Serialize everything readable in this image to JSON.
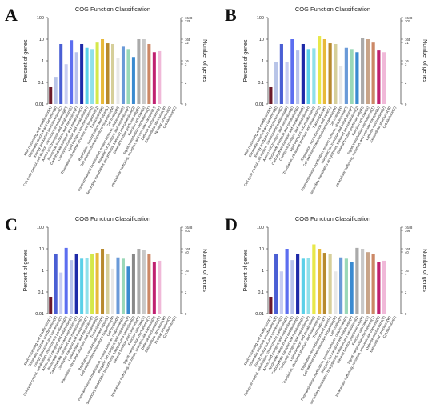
{
  "chart_data": [
    {
      "panel": "A",
      "type": "bar",
      "title": "COG Function Classification",
      "ylabel": "Percent of genes",
      "y2label": "Number of genes",
      "yscale": "log",
      "ylim": [
        0.01,
        100
      ],
      "yticks": [
        "100",
        "10",
        "1",
        "0.1",
        "0.01"
      ],
      "y2ticks": [
        "1648",
        "329",
        "165",
        "32",
        "16",
        "3",
        "2",
        "0"
      ],
      "categories": [
        "RNA processing and modification(A)",
        "Chromatin structure and dynamics(B)",
        "Energy production and conversion(C)",
        "Cell cycle control, cell division, chromosome partitioning(D)",
        "Amino acid transport and metabolism(E)",
        "Nucleotide transport and metabolism(F)",
        "Carbohydrate transport and metabolism(G)",
        "Coenzyme transport and metabolism(H)",
        "Lipid transport and metabolism(I)",
        "Translation, ribosomal structure and biogenesis(J)",
        "Transcription(K)",
        "Replication, recombination and repair(L)",
        "Cell wall/membrane/envelope biogenesis(M)",
        "Cell motility(N)",
        "Posttranslational modification, protein turnover, chaperones(O)",
        "Inorganic ion transport and metabolism(P)",
        "Secondary metabolites biosynthesis, transport and catabolism(Q)",
        "General function prediction only(R)",
        "Function unknown(S)",
        "Signal transduction mechanisms(T)",
        "Intracellular trafficking, secretion, and vesicular transport(U)",
        "Defense mechanisms(V)",
        "Extracellular structures(W)",
        "Nuclear structure(Y)",
        "Cytoskeleton(Z)"
      ],
      "values": [
        0.06,
        0.18,
        6.0,
        0.7,
        9.0,
        2.5,
        6.0,
        4.0,
        3.5,
        7.0,
        10.0,
        6.5,
        6.0,
        1.3,
        4.5,
        3.5,
        1.5,
        10.0,
        10.0,
        6.0,
        2.5,
        2.8,
        0,
        0,
        0
      ],
      "colors": [
        "#6b1a2a",
        "#b8c4e8",
        "#4a5fd4",
        "#c7cdf2",
        "#5c6ef0",
        "#b7c2ec",
        "#1e2aa8",
        "#5ad0e8",
        "#8fe0ea",
        "#d4e84a",
        "#e8b93a",
        "#b88a2e",
        "#d6cf9a",
        "#e8e8e8",
        "#6a9ad8",
        "#9ad8b8",
        "#3a8ad0",
        "#aaaaaa",
        "#c8c8c8",
        "#cc8866",
        "#c02070",
        "#f0b8d8",
        "#dddddd",
        "#dddddd",
        "#dddddd"
      ]
    },
    {
      "panel": "B",
      "type": "bar",
      "title": "COG Function Classification",
      "ylabel": "Percent of genes",
      "y2label": "Number of genes",
      "yscale": "log",
      "ylim": [
        0.01,
        100
      ],
      "yticks": [
        "100",
        "10",
        "1",
        "0.1",
        "0.01"
      ],
      "y2ticks": [
        "1648",
        "307",
        "165",
        "31",
        "16",
        "3",
        "2",
        "0"
      ],
      "categories": [
        "RNA processing and modification(A)",
        "Chromatin structure and dynamics(B)",
        "Energy production and conversion(C)",
        "Cell cycle control, cell division, chromosome partitioning(D)",
        "Amino acid transport and metabolism(E)",
        "Nucleotide transport and metabolism(F)",
        "Carbohydrate transport and metabolism(G)",
        "Coenzyme transport and metabolism(H)",
        "Lipid transport and metabolism(I)",
        "Translation, ribosomal structure and biogenesis(J)",
        "Transcription(K)",
        "Replication, recombination and repair(L)",
        "Cell wall/membrane/envelope biogenesis(M)",
        "Cell motility(N)",
        "Posttranslational modification, protein turnover, chaperones(O)",
        "Inorganic ion transport and metabolism(P)",
        "Secondary metabolites biosynthesis, transport and catabolism(Q)",
        "General function prediction only(R)",
        "Function unknown(S)",
        "Signal transduction mechanisms(T)",
        "Intracellular trafficking, secretion, and vesicular transport(U)",
        "Defense mechanisms(V)",
        "Extracellular structures(W)",
        "Cytoskeleton(Z)"
      ],
      "values": [
        0.06,
        0.9,
        6.0,
        0.9,
        10.0,
        3.0,
        6.0,
        3.5,
        3.8,
        14.0,
        10.0,
        6.5,
        6.0,
        0.6,
        4.0,
        3.5,
        2.5,
        11.0,
        10.0,
        7.0,
        3.0,
        2.5,
        0,
        0
      ],
      "colors": [
        "#6b1a2a",
        "#b8c4e8",
        "#4a5fd4",
        "#c7cdf2",
        "#5c6ef0",
        "#b7c2ec",
        "#1e2aa8",
        "#5ad0e8",
        "#8fe0ea",
        "#e8e84a",
        "#e8b93a",
        "#b88a2e",
        "#d6cf9a",
        "#e8e8e8",
        "#6a9ad8",
        "#9ad8b8",
        "#3a8ad0",
        "#aaaaaa",
        "#c8a488",
        "#cc8866",
        "#c02070",
        "#f0b8d8",
        "#dddddd",
        "#dddddd"
      ]
    },
    {
      "panel": "C",
      "type": "bar",
      "title": "COG Function Classification",
      "ylabel": "Percent of genes",
      "y2label": "Number of genes",
      "yscale": "log",
      "ylim": [
        0.01,
        100
      ],
      "yticks": [
        "100",
        "10",
        "1",
        "0.1",
        "0.01"
      ],
      "y2ticks": [
        "1648",
        "403",
        "165",
        "40",
        "16",
        "4",
        "2",
        "0"
      ],
      "categories": [
        "RNA processing and modification(A)",
        "Chromatin structure and dynamics(B)",
        "Energy production and conversion(C)",
        "Cell cycle control, cell division, chromosome partitioning(D)",
        "Amino acid transport and metabolism(E)",
        "Nucleotide transport and metabolism(F)",
        "Carbohydrate transport and metabolism(G)",
        "Coenzyme transport and metabolism(H)",
        "Lipid transport and metabolism(I)",
        "Translation, ribosomal structure and biogenesis(J)",
        "Transcription(K)",
        "Replication, recombination and repair(L)",
        "Cell wall/membrane/envelope biogenesis(M)",
        "Cell motility(N)",
        "Posttranslational modification, protein turnover, chaperones(O)",
        "Inorganic ion transport and metabolism(P)",
        "Secondary metabolites biosynthesis, transport and catabolism(Q)",
        "General function prediction only(R)",
        "Function unknown(S)",
        "Signal transduction mechanisms(T)",
        "Intracellular trafficking, secretion, and vesicular transport(U)",
        "Defense mechanisms(V)",
        "Extracellular structures(W)",
        "Nuclear structure(Y)",
        "Cytoskeleton(Z)"
      ],
      "values": [
        0.06,
        6.0,
        0.8,
        11.0,
        3.0,
        6.0,
        3.5,
        3.8,
        6.0,
        6.5,
        10.0,
        6.0,
        1.2,
        4.0,
        3.5,
        1.5,
        6.0,
        10.0,
        9.0,
        6.0,
        2.5,
        2.8,
        0,
        0,
        0
      ],
      "colors": [
        "#6b1a2a",
        "#4a5fd4",
        "#c7cdf2",
        "#5c6ef0",
        "#b7c2ec",
        "#1e2aa8",
        "#5ad0e8",
        "#8fe0ea",
        "#d4e84a",
        "#e8b93a",
        "#b88a2e",
        "#d6cf9a",
        "#e8e8e8",
        "#6a9ad8",
        "#9ad8b8",
        "#3a8ad0",
        "#888888",
        "#aaaaaa",
        "#c8c8c8",
        "#cc8866",
        "#c02070",
        "#f0b8d8",
        "#dddddd",
        "#dddddd",
        "#dddddd"
      ]
    },
    {
      "panel": "D",
      "type": "bar",
      "title": "COG Function Classification",
      "ylabel": "Percent of genes",
      "y2label": "Number of genes",
      "yscale": "log",
      "ylim": [
        0.01,
        100
      ],
      "yticks": [
        "100",
        "10",
        "1",
        "0.1",
        "0.01"
      ],
      "y2ticks": [
        "1648",
        "399",
        "165",
        "40",
        "16",
        "4",
        "2",
        "0"
      ],
      "categories": [
        "RNA processing and modification(A)",
        "Chromatin structure and dynamics(B)",
        "Energy production and conversion(C)",
        "Cell cycle control, cell division, chromosome partitioning(D)",
        "Amino acid transport and metabolism(E)",
        "Nucleotide transport and metabolism(F)",
        "Carbohydrate transport and metabolism(G)",
        "Coenzyme transport and metabolism(H)",
        "Lipid transport and metabolism(I)",
        "Translation, ribosomal structure and biogenesis(J)",
        "Transcription(K)",
        "Replication, recombination and repair(L)",
        "Cell wall/membrane/envelope biogenesis(M)",
        "Cell motility(N)",
        "Posttranslational modification, protein turnover, chaperones(O)",
        "Inorganic ion transport and metabolism(P)",
        "Secondary metabolites biosynthesis, transport and catabolism(Q)",
        "General function prediction only(R)",
        "Function unknown(S)",
        "Signal transduction mechanisms(T)",
        "Intracellular trafficking, secretion, and vesicular transport(U)",
        "Defense mechanisms(V)",
        "Extracellular structures(W)",
        "Cytoskeleton(Z)"
      ],
      "values": [
        0.06,
        6.0,
        0.9,
        10.0,
        3.0,
        6.0,
        3.5,
        3.8,
        16.0,
        10.0,
        6.5,
        6.0,
        0.9,
        4.0,
        3.5,
        2.5,
        11.0,
        10.0,
        7.0,
        6.0,
        2.5,
        2.8,
        0,
        0
      ],
      "colors": [
        "#6b1a2a",
        "#4a5fd4",
        "#c7cdf2",
        "#5c6ef0",
        "#b7c2ec",
        "#1e2aa8",
        "#5ad0e8",
        "#8fe0ea",
        "#e8e84a",
        "#e8b93a",
        "#b88a2e",
        "#d6cf9a",
        "#e8e8e8",
        "#6a9ad8",
        "#9ad8b8",
        "#3a8ad0",
        "#aaaaaa",
        "#c8c8c8",
        "#c8a488",
        "#cc8866",
        "#c02070",
        "#f0b8d8",
        "#dddddd",
        "#dddddd"
      ]
    }
  ]
}
